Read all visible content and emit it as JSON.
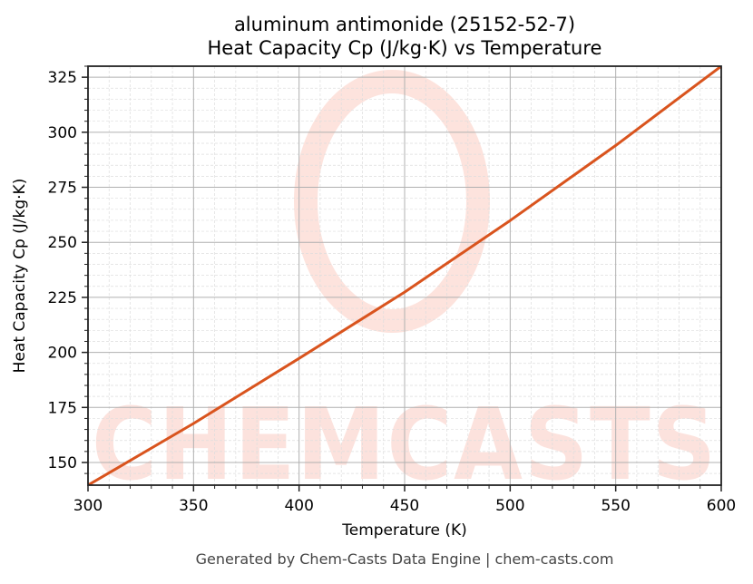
{
  "chart": {
    "title_line1": "aluminum antimonide (25152-52-7)",
    "title_line2": "Heat Capacity Cp (J/kg·K) vs Temperature",
    "xlabel": "Temperature (K)",
    "ylabel": "Heat Capacity Cp (J/kg·K)",
    "footer": "Generated by Chem-Casts Data Engine | chem-casts.com",
    "watermark": "CHEMCASTS",
    "line_color": "#d9541e"
  },
  "chart_data": {
    "type": "line",
    "title": "aluminum antimonide (25152-52-7) Heat Capacity Cp (J/kg·K) vs Temperature",
    "xlabel": "Temperature (K)",
    "ylabel": "Heat Capacity Cp (J/kg·K)",
    "x": [
      300,
      350,
      400,
      450,
      500,
      550,
      600
    ],
    "series": [
      {
        "name": "Heat Capacity Cp",
        "values": [
          139.7,
          167.7,
          197.3,
          227.4,
          259.9,
          294.0,
          330.0
        ]
      }
    ],
    "xlim": [
      300,
      600
    ],
    "ylim": [
      139.7,
      330.0
    ],
    "xticks": [
      300,
      350,
      400,
      450,
      500,
      550,
      600
    ],
    "yticks": [
      150,
      175,
      200,
      225,
      250,
      275,
      300,
      325
    ],
    "grid": true,
    "legend": null
  }
}
